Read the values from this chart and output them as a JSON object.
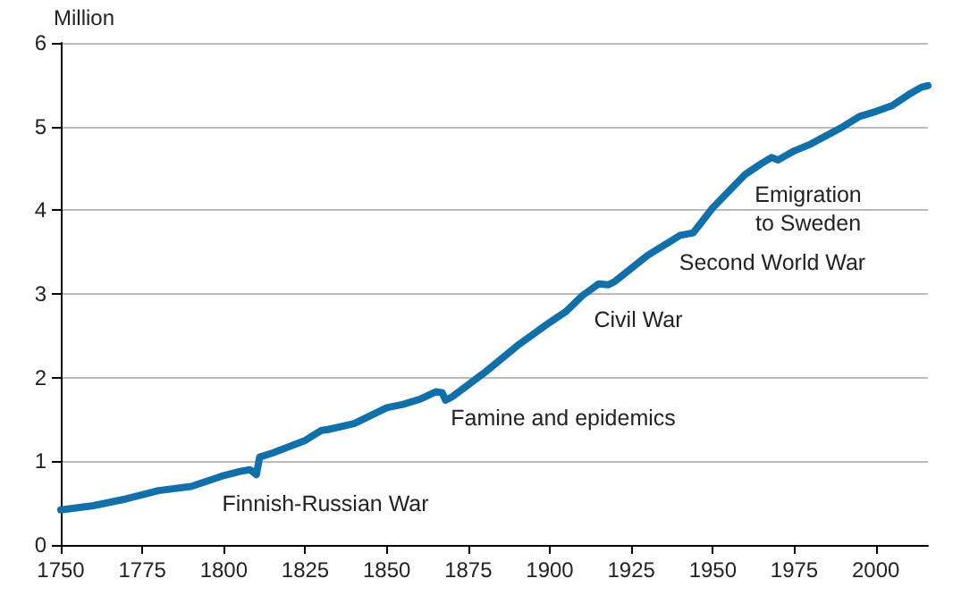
{
  "chart_data": {
    "type": "line",
    "ylabel": "Million",
    "x": [
      1750,
      1760,
      1770,
      1780,
      1790,
      1800,
      1805,
      1808,
      1810,
      1811,
      1815,
      1825,
      1830,
      1832,
      1840,
      1850,
      1855,
      1860,
      1865,
      1867,
      1868,
      1870,
      1880,
      1890,
      1900,
      1905,
      1910,
      1915,
      1918,
      1920,
      1930,
      1940,
      1944,
      1950,
      1960,
      1965,
      1968,
      1970,
      1975,
      1980,
      1990,
      1995,
      2000,
      2005,
      2010,
      2014,
      2016
    ],
    "series": [
      {
        "color": "#1170aa",
        "values": [
          0.42,
          0.47,
          0.55,
          0.65,
          0.7,
          0.83,
          0.88,
          0.9,
          0.84,
          1.05,
          1.1,
          1.25,
          1.37,
          1.38,
          1.45,
          1.64,
          1.68,
          1.74,
          1.83,
          1.82,
          1.73,
          1.77,
          2.06,
          2.38,
          2.66,
          2.79,
          2.98,
          3.12,
          3.11,
          3.15,
          3.46,
          3.7,
          3.73,
          4.03,
          4.43,
          4.56,
          4.63,
          4.6,
          4.71,
          4.79,
          5.0,
          5.12,
          5.18,
          5.25,
          5.38,
          5.47,
          5.49
        ]
      }
    ],
    "xlim": [
      1750,
      2016
    ],
    "xticks": [
      1750,
      1775,
      1800,
      1825,
      1850,
      1875,
      1900,
      1925,
      1950,
      1975,
      2000
    ],
    "ylim": [
      0,
      6
    ],
    "yticks": [
      0,
      1,
      2,
      3,
      4,
      5,
      6
    ],
    "grid": "y",
    "marker": "none",
    "line_style": "solid",
    "annotations": [
      "Finnish-Russian War",
      "Famine and epidemics",
      "Civil War",
      "Second World War",
      "Emigration\nto Sweden"
    ]
  }
}
